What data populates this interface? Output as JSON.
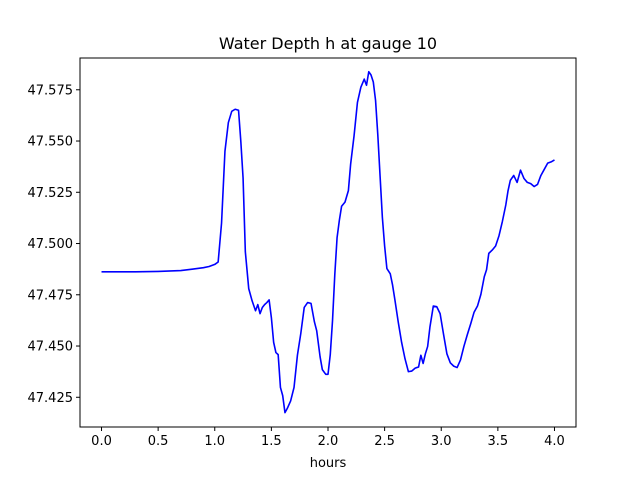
{
  "chart_data": {
    "type": "line",
    "title": "Water Depth h at gauge 10",
    "xlabel": "hours",
    "ylabel": "",
    "xlim": [
      -0.19,
      4.19
    ],
    "ylim": [
      47.4105,
      47.5905
    ],
    "xticks": [
      0.0,
      0.5,
      1.0,
      1.5,
      2.0,
      2.5,
      3.0,
      3.5,
      4.0
    ],
    "xtick_labels": [
      "0.0",
      "0.5",
      "1.0",
      "1.5",
      "2.0",
      "2.5",
      "3.0",
      "3.5",
      "4.0"
    ],
    "yticks": [
      47.425,
      47.45,
      47.475,
      47.5,
      47.525,
      47.55,
      47.575
    ],
    "ytick_labels": [
      "47.425",
      "47.450",
      "47.475",
      "47.500",
      "47.525",
      "47.550",
      "47.575"
    ],
    "grid": false,
    "line_color": "#0000ff",
    "series": [
      {
        "x": [
          0.0,
          0.3,
          0.5,
          0.7,
          0.8,
          0.9,
          0.95,
          1.0,
          1.03,
          1.06,
          1.09,
          1.12,
          1.15,
          1.18,
          1.21,
          1.23,
          1.25,
          1.27,
          1.3,
          1.33,
          1.36,
          1.38,
          1.4,
          1.42,
          1.44,
          1.46,
          1.48,
          1.5,
          1.52,
          1.54,
          1.56,
          1.58,
          1.6,
          1.62,
          1.64,
          1.67,
          1.7,
          1.73,
          1.76,
          1.79,
          1.82,
          1.85,
          1.88,
          1.9,
          1.93,
          1.95,
          1.98,
          2.0,
          2.02,
          2.04,
          2.06,
          2.08,
          2.1,
          2.12,
          2.15,
          2.18,
          2.2,
          2.23,
          2.26,
          2.29,
          2.32,
          2.34,
          2.36,
          2.38,
          2.4,
          2.42,
          2.44,
          2.46,
          2.48,
          2.5,
          2.52,
          2.55,
          2.57,
          2.59,
          2.62,
          2.65,
          2.68,
          2.71,
          2.74,
          2.77,
          2.8,
          2.82,
          2.84,
          2.86,
          2.88,
          2.9,
          2.93,
          2.96,
          2.99,
          3.02,
          3.05,
          3.08,
          3.11,
          3.14,
          3.17,
          3.2,
          3.23,
          3.26,
          3.29,
          3.32,
          3.35,
          3.38,
          3.4,
          3.42,
          3.45,
          3.48,
          3.51,
          3.54,
          3.57,
          3.59,
          3.61,
          3.64,
          3.67,
          3.7,
          3.73,
          3.76,
          3.79,
          3.82,
          3.85,
          3.88,
          3.91,
          3.94,
          3.97,
          4.0
        ],
        "y": [
          47.4862,
          47.4862,
          47.4864,
          47.4868,
          47.4875,
          47.4882,
          47.4888,
          47.4898,
          47.491,
          47.51,
          47.545,
          47.559,
          47.5645,
          47.5655,
          47.565,
          47.55,
          47.532,
          47.496,
          47.478,
          47.472,
          47.4672,
          47.4702,
          47.4658,
          47.4688,
          47.4702,
          47.4712,
          47.4725,
          47.4638,
          47.4518,
          47.4468,
          47.4458,
          47.4298,
          47.4258,
          47.4175,
          47.4195,
          47.4232,
          47.4298,
          47.4455,
          47.4562,
          47.4688,
          47.4712,
          47.4708,
          47.4618,
          47.4575,
          47.4448,
          47.4385,
          47.4362,
          47.4362,
          47.4458,
          47.4625,
          47.4848,
          47.5028,
          47.5112,
          47.5182,
          47.5202,
          47.5258,
          47.5388,
          47.5525,
          47.5688,
          47.5762,
          47.5802,
          47.5772,
          47.5838,
          47.5822,
          47.5788,
          47.5698,
          47.5528,
          47.5328,
          47.5128,
          47.4988,
          47.4878,
          47.4852,
          47.4798,
          47.4728,
          47.4618,
          47.4518,
          47.4438,
          47.4375,
          47.4378,
          47.4392,
          47.4398,
          47.4455,
          47.4415,
          47.4462,
          47.4498,
          47.4592,
          47.4695,
          47.4692,
          47.4658,
          47.4558,
          47.4462,
          47.4418,
          47.4402,
          47.4395,
          47.4432,
          47.4498,
          47.4555,
          47.4608,
          47.4665,
          47.4695,
          47.4752,
          47.4838,
          47.4872,
          47.4952,
          47.4968,
          47.4988,
          47.5038,
          47.5108,
          47.5188,
          47.5258,
          47.5308,
          47.5332,
          47.5298,
          47.5358,
          47.5318,
          47.5298,
          47.5292,
          47.5278,
          47.5288,
          47.5332,
          47.5362,
          47.5392,
          47.5398,
          47.5408
        ]
      }
    ]
  }
}
